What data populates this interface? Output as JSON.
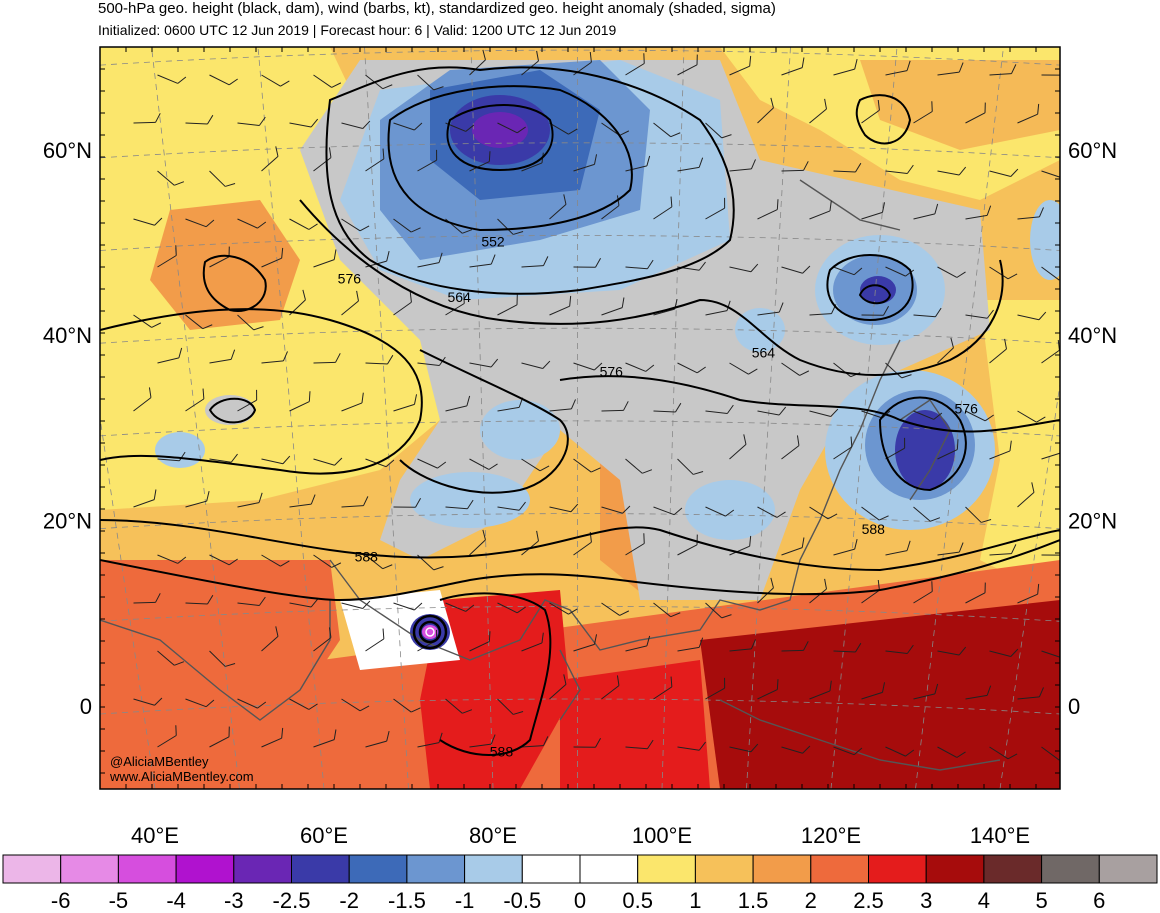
{
  "header": {
    "title": "500-hPa geo. height (black, dam), wind (barbs, kt), standardized geo. height anomaly (shaded, sigma)",
    "subtitle": "Initialized: 0600 UTC 12 Jun 2019 | Forecast hour: 6 | Valid: 1200 UTC 12 Jun 2019"
  },
  "map": {
    "lat_labels_left": [
      {
        "text": "60°N",
        "y": 60
      },
      {
        "text": "40°N",
        "y": 40
      },
      {
        "text": "20°N",
        "y": 20
      },
      {
        "text": "0",
        "y": 0
      }
    ],
    "lat_labels_right": [
      {
        "text": "60°N",
        "y": 60
      },
      {
        "text": "40°N",
        "y": 40
      },
      {
        "text": "20°N",
        "y": 20
      },
      {
        "text": "0",
        "y": 0
      }
    ],
    "lon_labels": [
      {
        "text": "40°E",
        "x": 40
      },
      {
        "text": "60°E",
        "x": 60
      },
      {
        "text": "80°E",
        "x": 80
      },
      {
        "text": "100°E",
        "x": 100
      },
      {
        "text": "120°E",
        "x": 120
      },
      {
        "text": "140°E",
        "x": 140
      }
    ],
    "contour_labels": [
      {
        "text": "552",
        "lon": 80,
        "lat": 50
      },
      {
        "text": "564",
        "lon": 76,
        "lat": 44
      },
      {
        "text": "576",
        "lon": 63,
        "lat": 46
      },
      {
        "text": "576",
        "lon": 94,
        "lat": 36
      },
      {
        "text": "564",
        "lon": 112,
        "lat": 38
      },
      {
        "text": "576",
        "lon": 136,
        "lat": 32
      },
      {
        "text": "588",
        "lon": 65,
        "lat": 16
      },
      {
        "text": "588",
        "lon": 125,
        "lat": 19
      },
      {
        "text": "588",
        "lon": 81,
        "lat": -5
      }
    ],
    "credit_lines": [
      "@AliciaMBentley",
      "www.AliciaMBentley.com"
    ]
  },
  "colorbar": {
    "colors": [
      "#ecb6e8",
      "#e68ae6",
      "#d64ede",
      "#b012cf",
      "#6a26b4",
      "#3a3aa8",
      "#3d6ab8",
      "#6c96d0",
      "#a8cbe8",
      "#ffffff",
      "#ffffff",
      "#fbe66c",
      "#f6c15a",
      "#f29c4a",
      "#ee6a3c",
      "#e41c1c",
      "#a60c0c",
      "#6a2a2a",
      "#706866",
      "#a8a0a0"
    ],
    "labels": [
      "-6",
      "-5",
      "-4",
      "-3",
      "-2.5",
      "-2",
      "-1.5",
      "-1",
      "-0.5",
      "0",
      "0.5",
      "1",
      "1.5",
      "2",
      "2.5",
      "3",
      "4",
      "5",
      "6"
    ]
  }
}
